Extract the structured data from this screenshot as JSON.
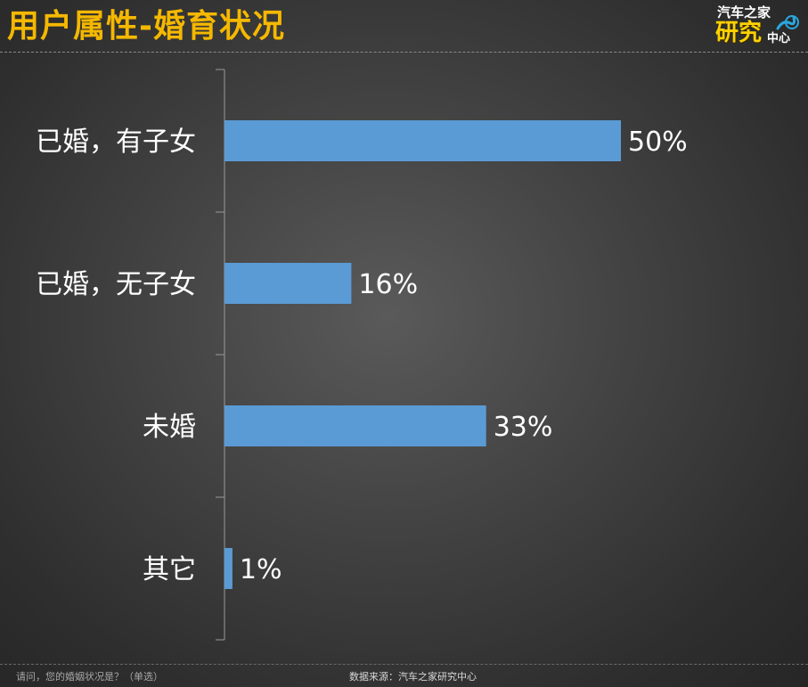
{
  "title": "用户属性-婚育状况",
  "logo": {
    "brand": "汽车之家",
    "research": "研究",
    "center": "中心"
  },
  "colors": {
    "title": "#f5b800",
    "bar": "#5b9bd5",
    "background": "#3c3c3c"
  },
  "footer": {
    "question": "请问，您的婚姻状况是？（单选）",
    "source": "数据来源：汽车之家研究中心"
  },
  "chart_data": {
    "type": "bar",
    "orientation": "horizontal",
    "title": "",
    "categories": [
      "已婚，有子女",
      "已婚，无子女",
      "未婚",
      "其它"
    ],
    "values": [
      50,
      16,
      33,
      1
    ],
    "value_labels": [
      "50%",
      "16%",
      "33%",
      "1%"
    ],
    "unit": "%",
    "xlim": [
      0,
      50
    ],
    "grid": false,
    "legend": "none"
  }
}
